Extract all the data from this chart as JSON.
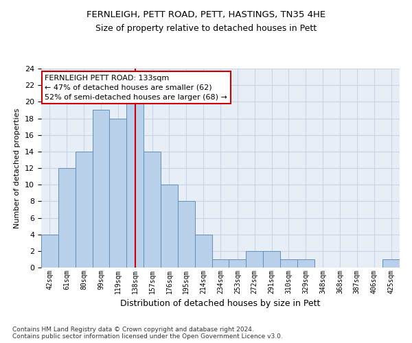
{
  "title1": "FERNLEIGH, PETT ROAD, PETT, HASTINGS, TN35 4HE",
  "title2": "Size of property relative to detached houses in Pett",
  "xlabel": "Distribution of detached houses by size in Pett",
  "ylabel": "Number of detached properties",
  "footnote": "Contains HM Land Registry data © Crown copyright and database right 2024.\nContains public sector information licensed under the Open Government Licence v3.0.",
  "bar_labels": [
    "42sqm",
    "61sqm",
    "80sqm",
    "99sqm",
    "119sqm",
    "138sqm",
    "157sqm",
    "176sqm",
    "195sqm",
    "214sqm",
    "234sqm",
    "253sqm",
    "272sqm",
    "291sqm",
    "310sqm",
    "329sqm",
    "348sqm",
    "368sqm",
    "387sqm",
    "406sqm",
    "425sqm"
  ],
  "bar_values": [
    4,
    12,
    14,
    19,
    18,
    20,
    14,
    10,
    8,
    4,
    1,
    1,
    2,
    2,
    1,
    1,
    0,
    0,
    0,
    0,
    1
  ],
  "bar_color": "#b8d0ea",
  "bar_edge_color": "#6090b8",
  "redline_color": "#cc0000",
  "redline_x": 5,
  "annotation_title": "FERNLEIGH PETT ROAD: 133sqm",
  "annotation_line1": "← 47% of detached houses are smaller (62)",
  "annotation_line2": "52% of semi-detached houses are larger (68) →",
  "annotation_box_color": "#ffffff",
  "annotation_box_edge": "#cc0000",
  "ylim": [
    0,
    24
  ],
  "yticks": [
    0,
    2,
    4,
    6,
    8,
    10,
    12,
    14,
    16,
    18,
    20,
    22,
    24
  ],
  "grid_color": "#c8d4e8",
  "background_color": "#e8eef6",
  "fig_background": "#ffffff",
  "title1_fontsize": 9.5,
  "title2_fontsize": 9,
  "xlabel_fontsize": 9,
  "ylabel_fontsize": 8,
  "footnote_fontsize": 6.5
}
